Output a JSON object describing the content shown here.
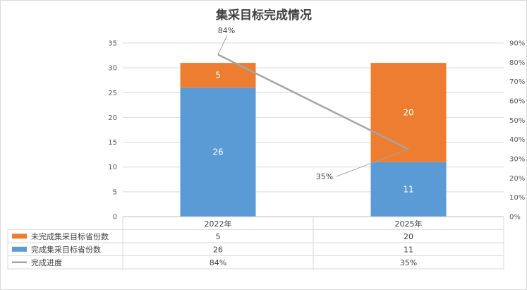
{
  "chart_data": {
    "type": "bar",
    "title": "集采目标完成情况",
    "categories": [
      "2022年",
      "2025年"
    ],
    "series": [
      {
        "name": "完成集采目标省份数",
        "kind": "bar",
        "axis": "left",
        "color": "#5b9bd5",
        "values": [
          26,
          11
        ],
        "labels": [
          "26",
          "11"
        ]
      },
      {
        "name": "未完成集采目标省份数",
        "kind": "bar",
        "axis": "left",
        "color": "#ed7d31",
        "values": [
          5,
          20
        ],
        "labels": [
          "5",
          "20"
        ]
      },
      {
        "name": "完成进度",
        "kind": "line",
        "axis": "right",
        "color": "#a5a5a5",
        "values": [
          84,
          35
        ],
        "labels": [
          "84%",
          "35%"
        ]
      }
    ],
    "stacked": true,
    "ylim": [
      0,
      35
    ],
    "y_ticks": [
      "0",
      "5",
      "10",
      "15",
      "20",
      "25",
      "30",
      "35"
    ],
    "y2lim": [
      0,
      90
    ],
    "y2_ticks": [
      "0%",
      "10%",
      "20%",
      "30%",
      "40%",
      "50%",
      "60%",
      "70%",
      "80%",
      "90%"
    ],
    "grid": true,
    "legend": "data-table",
    "data_table": {
      "rows": [
        {
          "name": "未完成集采目标省份数",
          "color": "#ed7d31",
          "marker": "box",
          "cells": [
            "5",
            "20"
          ]
        },
        {
          "name": "完成集采目标省份数",
          "color": "#5b9bd5",
          "marker": "box",
          "cells": [
            "26",
            "11"
          ]
        },
        {
          "name": "完成进度",
          "color": "#a5a5a5",
          "marker": "line",
          "cells": [
            "84%",
            "35%"
          ]
        }
      ]
    }
  }
}
